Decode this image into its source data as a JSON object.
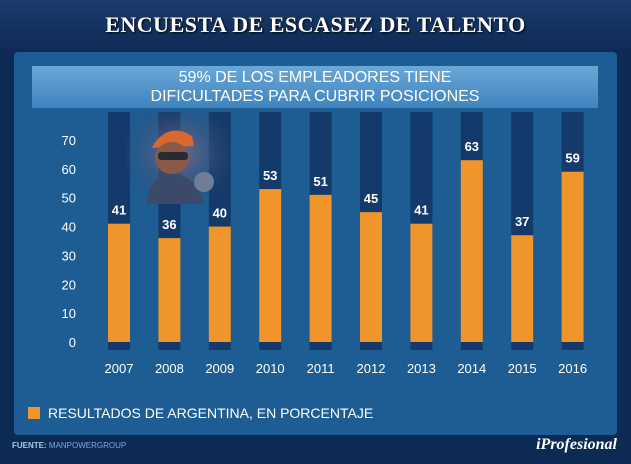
{
  "header": {
    "title": "ENCUESTA DE ESCASEZ DE TALENTO"
  },
  "subtitle": {
    "line1": "59% DE LOS EMPLEADORES TIENE",
    "line2": "DIFICULTADES PARA CUBRIR POSICIONES"
  },
  "legend": {
    "label": "RESULTADOS DE ARGENTINA, EN PORCENTAJE"
  },
  "footer": {
    "source_label": "FUENTE:",
    "source_value": "MANPOWERGROUP",
    "brand": "iProfesional"
  },
  "colors": {
    "bar": "#f0952b",
    "track": "#133a6a",
    "panel": "#1d5d93"
  },
  "chart_data": {
    "type": "bar",
    "title": "59% DE LOS EMPLEADORES TIENE DIFICULTADES PARA CUBRIR POSICIONES",
    "xlabel": "",
    "ylabel": "",
    "categories": [
      "2007",
      "2008",
      "2009",
      "2010",
      "2011",
      "2012",
      "2013",
      "2014",
      "2015",
      "2016"
    ],
    "values": [
      41,
      36,
      40,
      53,
      51,
      45,
      41,
      63,
      37,
      59
    ],
    "yticks": [
      0,
      10,
      20,
      30,
      40,
      50,
      60,
      70
    ],
    "ylim": [
      0,
      75
    ],
    "legend": "RESULTADOS DE ARGENTINA, EN PORCENTAJE",
    "grid": false
  }
}
